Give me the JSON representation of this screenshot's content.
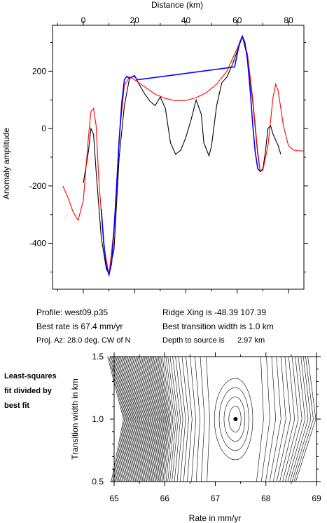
{
  "chart_data": [
    {
      "type": "line",
      "xlabel": "Distance (km)",
      "ylabel": "Anomaly amplitude",
      "xlim": [
        -12,
        86
      ],
      "ylim": [
        -560,
        360
      ],
      "x_ticks": [
        0,
        20,
        40,
        60,
        80
      ],
      "y_ticks": [
        -400,
        -200,
        0,
        200
      ],
      "series": [
        {
          "color": "#000000",
          "x": [
            0,
            2,
            3,
            4,
            5,
            7,
            9,
            10,
            12,
            14,
            16,
            18,
            20,
            22,
            24,
            26,
            28,
            30,
            32,
            34,
            36,
            38,
            40,
            42,
            44,
            46,
            47,
            49,
            50,
            52,
            54,
            56,
            58,
            60,
            62,
            64,
            66,
            68,
            69,
            70,
            71,
            72,
            73,
            74,
            76,
            77
          ],
          "y": [
            -190,
            -80,
            0,
            -20,
            -150,
            -380,
            -490,
            -505,
            -420,
            -100,
            80,
            175,
            185,
            150,
            120,
            95,
            80,
            110,
            70,
            -50,
            -90,
            -75,
            -30,
            30,
            100,
            50,
            -50,
            -95,
            -60,
            80,
            160,
            180,
            220,
            270,
            320,
            250,
            100,
            -90,
            -150,
            -140,
            -80,
            0,
            10,
            -20,
            -60,
            -90
          ]
        },
        {
          "color": "#ff0000",
          "x": [
            -8,
            -6,
            -4,
            -2,
            0,
            2,
            3,
            4,
            5,
            6,
            8,
            10,
            12,
            14,
            16,
            18,
            20,
            24,
            28,
            32,
            36,
            40,
            44,
            48,
            52,
            56,
            58,
            60,
            62,
            64,
            66,
            68,
            69,
            70,
            72,
            74,
            75,
            76,
            78,
            80,
            82,
            84,
            86
          ],
          "y": [
            -200,
            -240,
            -290,
            -320,
            -250,
            -30,
            60,
            70,
            10,
            -170,
            -410,
            -510,
            -350,
            -30,
            150,
            180,
            170,
            145,
            120,
            105,
            97,
            98,
            108,
            125,
            155,
            200,
            240,
            280,
            320,
            260,
            110,
            -80,
            -150,
            -145,
            -60,
            110,
            155,
            130,
            10,
            -60,
            -75,
            -78,
            -78
          ]
        },
        {
          "color": "#0000ff",
          "x": [
            7,
            8,
            9,
            10,
            11,
            12,
            13,
            14,
            15,
            16,
            17,
            18,
            19,
            20,
            21,
            59,
            60,
            61,
            62,
            63,
            64,
            65,
            66,
            67,
            68,
            69
          ],
          "y": [
            -280,
            -400,
            -480,
            -510,
            -470,
            -350,
            -200,
            -40,
            90,
            170,
            182,
            175,
            180,
            182,
            170,
            215,
            260,
            300,
            322,
            300,
            240,
            140,
            20,
            -80,
            -140,
            -150
          ]
        }
      ]
    },
    {
      "type": "contour",
      "xlabel": "Rate in mm/yr",
      "ylabel": "Transition width in km",
      "xlim": [
        65,
        69
      ],
      "ylim": [
        0.5,
        1.5
      ],
      "x_ticks": [
        65,
        66,
        67,
        68,
        69
      ],
      "y_ticks": [
        0.5,
        1.0,
        1.5
      ],
      "best_point": {
        "rate": 67.4,
        "width": 1.0
      }
    }
  ],
  "info": {
    "profile": "Profile: west09.p35",
    "best_rate": "Best rate is 67.4 mm/yr",
    "proj_az": "Proj. Az: 28.0 deg. CW of N",
    "ridge_xing": "Ridge Xing is -48.39 107.39",
    "best_transition": "Best transition width is 1.0 km",
    "depth_label": "Depth to source is",
    "depth_value": "2.97 km"
  },
  "side_note": [
    "Least-squares",
    "fit divided by",
    "best fit"
  ]
}
